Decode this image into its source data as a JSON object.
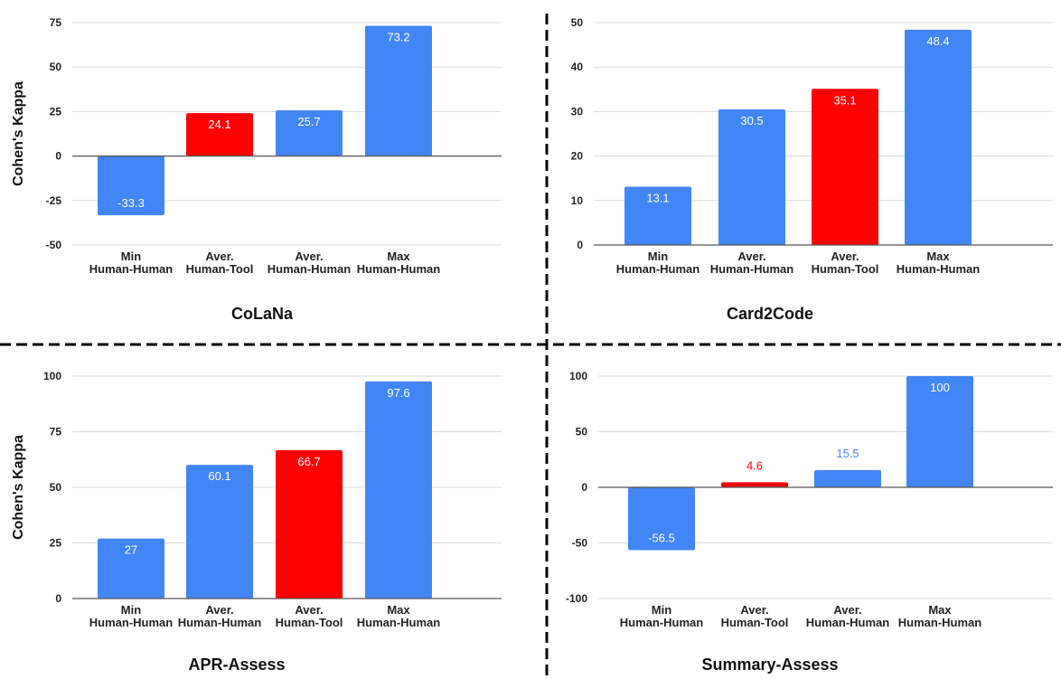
{
  "colors": {
    "blue": "#4285f4",
    "red": "#ff0000",
    "grid": "#d9d9d9",
    "zero_axis": "#555555",
    "label_inside": "#ffffff",
    "divider": "#000000"
  },
  "chart_data": [
    {
      "type": "bar",
      "title": "CoLaNa",
      "ylabel": "Cohen's Kappa",
      "xlabel": "",
      "ylim": [
        -50,
        75
      ],
      "yticks": [
        -50,
        -25,
        0,
        25,
        50,
        75
      ],
      "grid": true,
      "categories": [
        [
          "Min",
          "Human-Human"
        ],
        [
          "Aver.",
          "Human-Tool"
        ],
        [
          "Aver.",
          "Human-Human"
        ],
        [
          "Max",
          "Human-Human"
        ]
      ],
      "values": [
        -33.3,
        24.1,
        25.7,
        73.2
      ],
      "labels": [
        "-33.3",
        "24.1",
        "25.7",
        "73.2"
      ],
      "bar_colors": [
        "blue",
        "red",
        "blue",
        "blue"
      ]
    },
    {
      "type": "bar",
      "title": "Card2Code",
      "ylabel": "",
      "xlabel": "",
      "ylim": [
        0,
        50
      ],
      "yticks": [
        0,
        10,
        20,
        30,
        40,
        50
      ],
      "grid": true,
      "categories": [
        [
          "Min",
          "Human-Human"
        ],
        [
          "Aver.",
          "Human-Human"
        ],
        [
          "Aver.",
          "Human-Tool"
        ],
        [
          "Max",
          "Human-Human"
        ]
      ],
      "values": [
        13.1,
        30.5,
        35.1,
        48.4
      ],
      "labels": [
        "13.1",
        "30.5",
        "35.1",
        "48.4"
      ],
      "bar_colors": [
        "blue",
        "blue",
        "red",
        "blue"
      ]
    },
    {
      "type": "bar",
      "title": "APR-Assess",
      "ylabel": "Cohen's Kappa",
      "xlabel": "",
      "ylim": [
        0,
        100
      ],
      "yticks": [
        0,
        25,
        50,
        75,
        100
      ],
      "grid": true,
      "categories": [
        [
          "Min",
          "Human-Human"
        ],
        [
          "Aver.",
          "Human-Human"
        ],
        [
          "Aver.",
          "Human-Tool"
        ],
        [
          "Max",
          "Human-Human"
        ]
      ],
      "values": [
        27,
        60.1,
        66.7,
        97.6
      ],
      "labels": [
        "27",
        "60.1",
        "66.7",
        "97.6"
      ],
      "bar_colors": [
        "blue",
        "blue",
        "red",
        "blue"
      ]
    },
    {
      "type": "bar",
      "title": "Summary-Assess",
      "ylabel": "",
      "xlabel": "",
      "ylim": [
        -100,
        100
      ],
      "yticks": [
        -100,
        -50,
        0,
        50,
        100
      ],
      "grid": true,
      "categories": [
        [
          "Min",
          "Human-Human"
        ],
        [
          "Aver.",
          "Human-Tool"
        ],
        [
          "Aver.",
          "Human-Human"
        ],
        [
          "Max",
          "Human-Human"
        ]
      ],
      "values": [
        -56.5,
        4.6,
        15.5,
        100
      ],
      "labels": [
        "-56.5",
        "4.6",
        "15.5",
        "100"
      ],
      "bar_colors": [
        "blue",
        "red",
        "blue",
        "blue"
      ]
    }
  ]
}
